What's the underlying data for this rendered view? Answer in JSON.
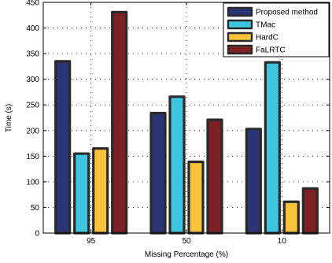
{
  "chart_data": {
    "type": "bar",
    "title": "",
    "xlabel": "Missing Percentage (%)",
    "ylabel": "Time (s)",
    "categories": [
      "95",
      "50",
      "10"
    ],
    "ylim": [
      0,
      450
    ],
    "yticks": [
      0,
      50,
      100,
      150,
      200,
      250,
      300,
      350,
      400,
      450
    ],
    "grid": true,
    "legend_position": "top-right",
    "series": [
      {
        "name": "Proposed method",
        "color": "#2b3475",
        "values": [
          335,
          234,
          203
        ]
      },
      {
        "name": "TMac",
        "color": "#3ec6e0",
        "values": [
          155,
          266,
          333
        ]
      },
      {
        "name": "HardC",
        "color": "#f8c23a",
        "values": [
          165,
          139,
          61
        ]
      },
      {
        "name": "FaLRTC",
        "color": "#7e1f24",
        "values": [
          431,
          221,
          87
        ]
      }
    ]
  }
}
